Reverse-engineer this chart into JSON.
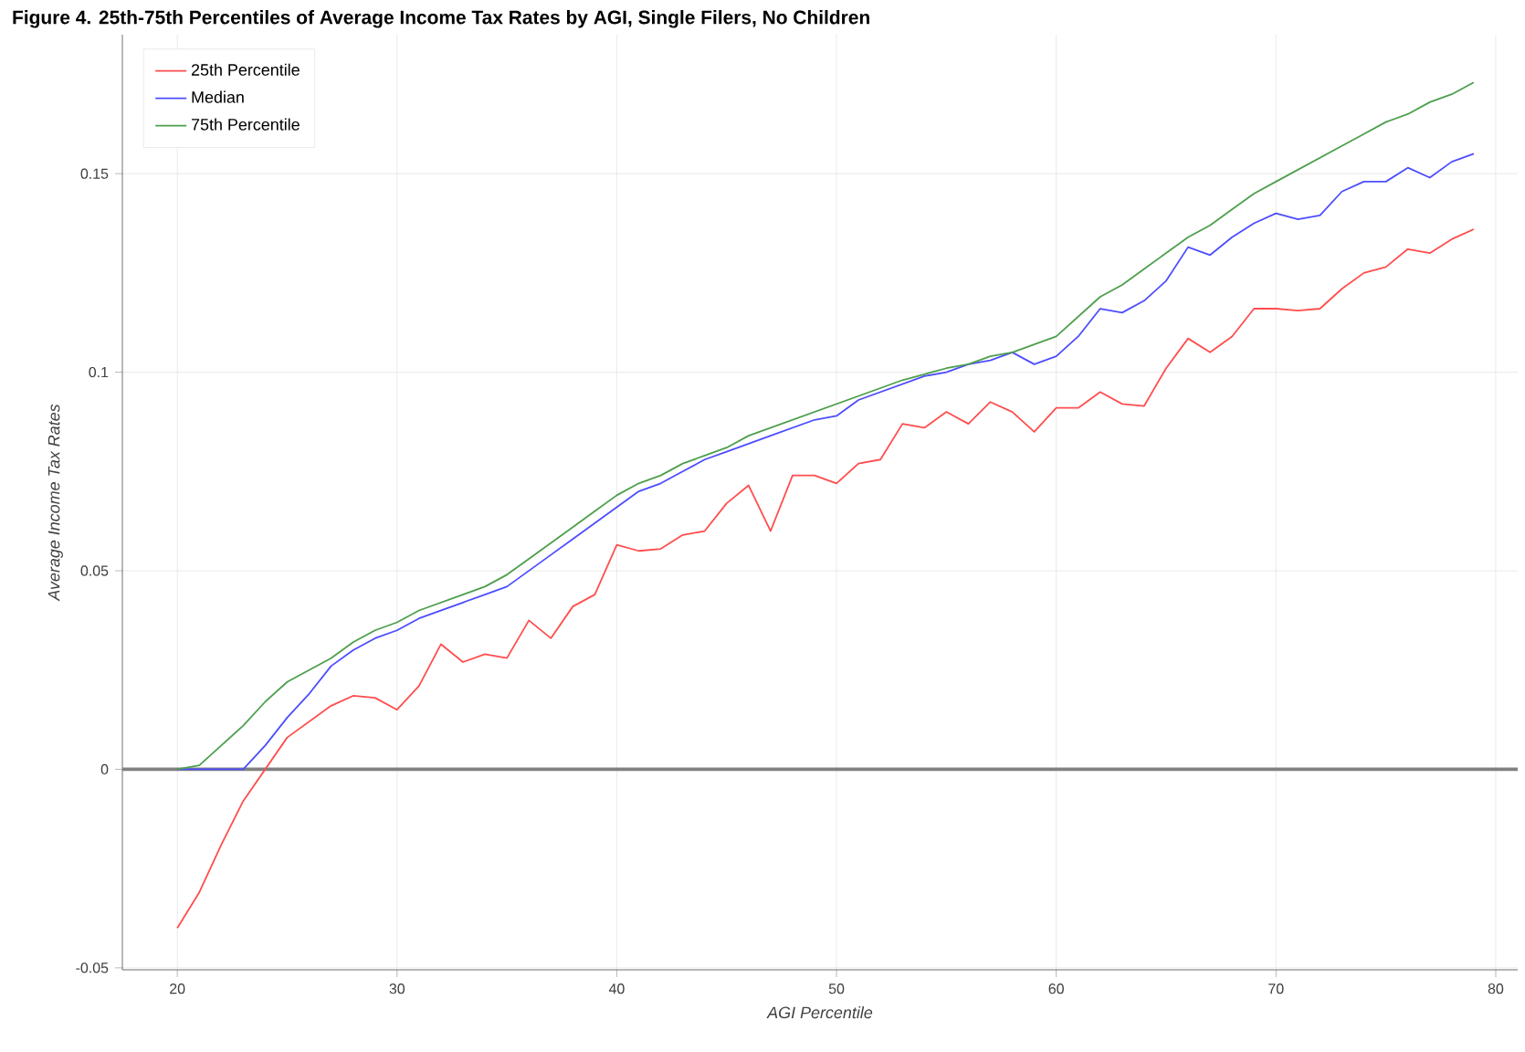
{
  "chart_data": {
    "type": "line",
    "title": "Figure 4. 25th-75th Percentiles of Average Income Tax Rates by AGI, Single Filers, No Children",
    "xlabel": "AGI Percentile",
    "ylabel": "Average Income Tax Rates",
    "x": [
      20,
      21,
      22,
      23,
      24,
      25,
      26,
      27,
      28,
      29,
      30,
      31,
      32,
      33,
      34,
      35,
      36,
      37,
      38,
      39,
      40,
      41,
      42,
      43,
      44,
      45,
      46,
      47,
      48,
      49,
      50,
      51,
      52,
      53,
      54,
      55,
      56,
      57,
      58,
      59,
      60,
      61,
      62,
      63,
      64,
      65,
      66,
      67,
      68,
      69,
      70,
      71,
      72,
      73,
      74,
      75,
      76,
      77,
      78,
      79
    ],
    "series": [
      {
        "name": "25th Percentile",
        "color": "#ff4d4d",
        "values": [
          -0.04,
          -0.031,
          -0.019,
          -0.008,
          0.0,
          0.008,
          0.012,
          0.016,
          0.0185,
          0.018,
          0.015,
          0.021,
          0.0315,
          0.027,
          0.029,
          0.028,
          0.0375,
          0.033,
          0.041,
          0.044,
          0.0565,
          0.055,
          0.0555,
          0.059,
          0.06,
          0.067,
          0.0715,
          0.06,
          0.074,
          0.074,
          0.072,
          0.077,
          0.078,
          0.087,
          0.086,
          0.09,
          0.087,
          0.0925,
          0.09,
          0.085,
          0.091,
          0.091,
          0.095,
          0.092,
          0.0915,
          0.101,
          0.1085,
          0.105,
          0.109,
          0.116,
          0.116,
          0.1155,
          0.116,
          0.121,
          0.125,
          0.1265,
          0.131,
          0.13,
          0.1335,
          0.136
        ]
      },
      {
        "name": "Median",
        "color": "#4d4dff",
        "values": [
          0,
          0,
          0,
          0,
          0.006,
          0.013,
          0.019,
          0.026,
          0.03,
          0.033,
          0.035,
          0.038,
          0.04,
          0.042,
          0.044,
          0.046,
          0.05,
          0.054,
          0.058,
          0.062,
          0.066,
          0.07,
          0.072,
          0.075,
          0.078,
          0.08,
          0.082,
          0.084,
          0.086,
          0.088,
          0.089,
          0.093,
          0.095,
          0.097,
          0.099,
          0.1,
          0.102,
          0.103,
          0.105,
          0.102,
          0.104,
          0.109,
          0.116,
          0.115,
          0.118,
          0.123,
          0.1315,
          0.1295,
          0.134,
          0.1375,
          0.14,
          0.1385,
          0.1395,
          0.1455,
          0.148,
          0.148,
          0.1515,
          0.149,
          0.153,
          0.155
        ]
      },
      {
        "name": "75th Percentile",
        "color": "#4d9f4d",
        "values": [
          0,
          0.001,
          0.006,
          0.011,
          0.017,
          0.022,
          0.025,
          0.028,
          0.032,
          0.035,
          0.037,
          0.04,
          0.042,
          0.044,
          0.046,
          0.049,
          0.053,
          0.057,
          0.061,
          0.065,
          0.069,
          0.072,
          0.074,
          0.077,
          0.079,
          0.081,
          0.084,
          0.086,
          0.088,
          0.09,
          0.092,
          0.094,
          0.096,
          0.098,
          0.0995,
          0.101,
          0.102,
          0.104,
          0.105,
          0.107,
          0.109,
          0.114,
          0.119,
          0.122,
          0.126,
          0.13,
          0.134,
          0.137,
          0.141,
          0.145,
          0.148,
          0.151,
          0.154,
          0.157,
          0.16,
          0.163,
          0.165,
          0.168,
          0.17,
          0.173
        ]
      }
    ],
    "xlim": [
      17.5,
      81
    ],
    "ylim": [
      -0.0505,
      0.185
    ],
    "xticks": [
      20,
      30,
      40,
      50,
      60,
      70,
      80
    ],
    "yticks": [
      -0.05,
      0,
      0.05,
      0.1,
      0.15
    ],
    "ref_lines": [
      {
        "axis": "y",
        "value": 0,
        "color": "#808080"
      }
    ],
    "grid": true,
    "legend": "top left",
    "marker": "none",
    "line_style": "solid"
  }
}
